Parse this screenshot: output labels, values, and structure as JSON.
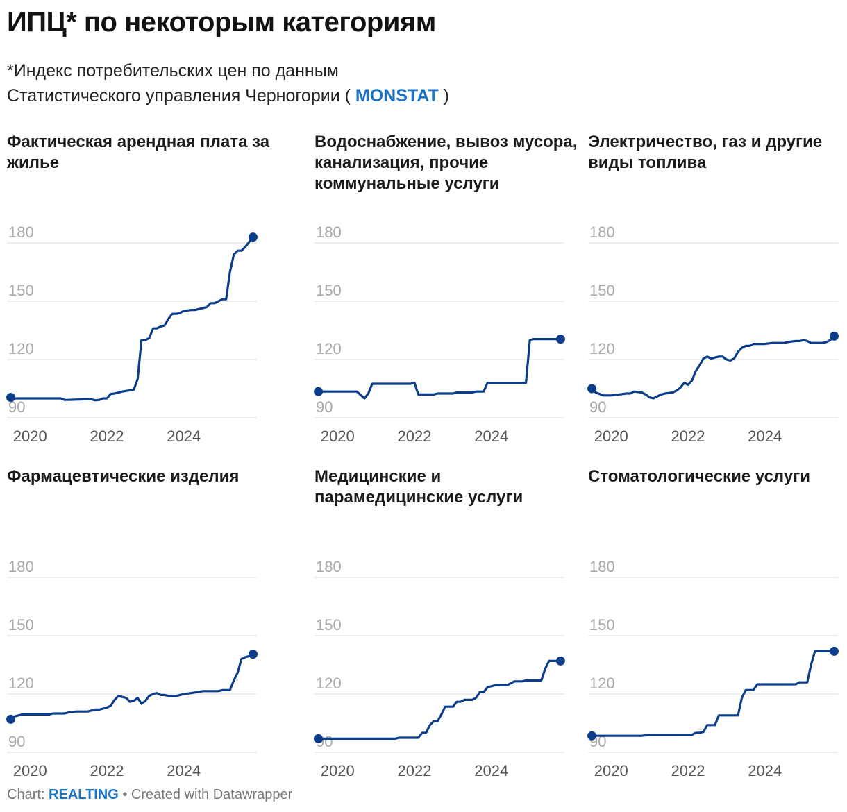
{
  "title": "ИПЦ* по некоторым категориям",
  "subtitle": {
    "line1": "*Индекс потребительских цен по данным",
    "line2_prefix": "Статистического управления Черногории (",
    "source_name": "MONSTAT",
    "line2_suffix": ")"
  },
  "footer": {
    "prefix": "Chart:",
    "source": "REALTING",
    "suffix": "• Created with Datawrapper"
  },
  "colors": {
    "line": "#0c3d8a",
    "grid": "#dddddd",
    "tick": "#a8a8a8",
    "year": "#555555",
    "accent": "#1a73c4"
  },
  "chart_data": [
    {
      "type": "line",
      "title": "Фактическая арендная плата за жилье",
      "xlim": [
        2019.4,
        2025.9
      ],
      "ylim": [
        90,
        190
      ],
      "xticks": [
        2020,
        2022,
        2024
      ],
      "yticks": [
        90,
        120,
        150,
        180
      ],
      "x": [
        2019.5,
        2019.6,
        2020.0,
        2020.5,
        2020.8,
        2020.9,
        2021.0,
        2021.4,
        2021.6,
        2021.7,
        2021.8,
        2021.9,
        2022.0,
        2022.1,
        2022.2,
        2022.3,
        2022.4,
        2022.55,
        2022.7,
        2022.8,
        2022.9,
        2023.0,
        2023.1,
        2023.2,
        2023.3,
        2023.4,
        2023.5,
        2023.6,
        2023.7,
        2023.8,
        2023.9,
        2024.0,
        2024.2,
        2024.3,
        2024.4,
        2024.6,
        2024.7,
        2024.8,
        2024.9,
        2025.0,
        2025.1,
        2025.2,
        2025.3,
        2025.4,
        2025.5,
        2025.6,
        2025.7,
        2025.8
      ],
      "values": [
        100.5,
        100,
        100,
        100,
        100,
        99.2,
        99.2,
        99.5,
        99.5,
        99,
        99.2,
        100,
        100,
        102.3,
        102.5,
        103,
        103.5,
        104,
        104.5,
        110,
        130,
        130,
        131,
        136,
        136,
        137,
        137.5,
        141,
        143.5,
        143.5,
        144,
        145,
        145.5,
        145.5,
        146,
        147,
        149,
        149,
        150,
        151,
        151,
        165,
        174,
        176,
        176,
        178,
        180.5,
        183
      ]
    },
    {
      "type": "line",
      "title": "Водоснабжение, вывоз мусора, канализация, прочие коммунальные услуги",
      "xlim": [
        2019.4,
        2025.9
      ],
      "ylim": [
        90,
        190
      ],
      "xticks": [
        2020,
        2022,
        2024
      ],
      "yticks": [
        90,
        120,
        150,
        180
      ],
      "x": [
        2019.5,
        2019.7,
        2020.5,
        2020.7,
        2020.8,
        2020.9,
        2021.0,
        2021.4,
        2021.9,
        2022.0,
        2022.1,
        2022.5,
        2022.6,
        2023.0,
        2023.1,
        2023.5,
        2023.6,
        2023.8,
        2023.9,
        2024.0,
        2024.9,
        2025.0,
        2025.1,
        2025.2,
        2025.4,
        2025.8
      ],
      "values": [
        103.5,
        103.5,
        103.5,
        100,
        102.5,
        107.5,
        107.5,
        107.5,
        107.5,
        108,
        102,
        102,
        102.5,
        102.5,
        103,
        103,
        103.5,
        103.5,
        108,
        108,
        108,
        130,
        130.5,
        130.5,
        130.5,
        130.5
      ]
    },
    {
      "type": "line",
      "title": "Электричество, газ и другие виды топлива",
      "xlim": [
        2019.4,
        2025.9
      ],
      "ylim": [
        90,
        190
      ],
      "xticks": [
        2020,
        2022,
        2024
      ],
      "yticks": [
        90,
        120,
        150,
        180
      ],
      "x": [
        2019.5,
        2019.6,
        2019.8,
        2020.0,
        2020.2,
        2020.4,
        2020.5,
        2020.6,
        2020.8,
        2020.9,
        2021.0,
        2021.1,
        2021.2,
        2021.3,
        2021.4,
        2021.6,
        2021.7,
        2021.8,
        2021.9,
        2022.0,
        2022.1,
        2022.2,
        2022.3,
        2022.4,
        2022.5,
        2022.6,
        2022.7,
        2022.8,
        2022.9,
        2023.0,
        2023.1,
        2023.2,
        2023.3,
        2023.4,
        2023.5,
        2023.6,
        2023.7,
        2023.8,
        2023.9,
        2024.0,
        2024.2,
        2024.5,
        2024.6,
        2024.8,
        2024.9,
        2025.0,
        2025.1,
        2025.2,
        2025.3,
        2025.5,
        2025.6,
        2025.7,
        2025.8
      ],
      "values": [
        105,
        103,
        101.5,
        101.5,
        102,
        102.5,
        102.5,
        103.5,
        103,
        102,
        100.5,
        100,
        101,
        102,
        102.5,
        103,
        104,
        105.5,
        108,
        107,
        109,
        114,
        117,
        120.5,
        121.5,
        120.5,
        121,
        121.5,
        121.5,
        120,
        119.5,
        120.5,
        124,
        126,
        127,
        127,
        128,
        128,
        128,
        128,
        128.5,
        128.5,
        129,
        129.5,
        129.5,
        130,
        129.5,
        128.5,
        128.5,
        128.5,
        129,
        130,
        132
      ]
    },
    {
      "type": "line",
      "title": "Фармацевтические изделия",
      "xlim": [
        2019.4,
        2025.9
      ],
      "ylim": [
        90,
        190
      ],
      "xticks": [
        2020,
        2022,
        2024
      ],
      "yticks": [
        90,
        120,
        150,
        180
      ],
      "x": [
        2019.5,
        2019.6,
        2019.8,
        2020.0,
        2020.5,
        2020.6,
        2020.8,
        2020.9,
        2021.0,
        2021.2,
        2021.3,
        2021.5,
        2021.6,
        2021.7,
        2021.8,
        2021.9,
        2022.0,
        2022.1,
        2022.2,
        2022.3,
        2022.4,
        2022.5,
        2022.6,
        2022.7,
        2022.8,
        2022.9,
        2023.0,
        2023.1,
        2023.2,
        2023.3,
        2023.4,
        2023.5,
        2023.6,
        2023.7,
        2023.8,
        2023.9,
        2024.0,
        2024.2,
        2024.5,
        2024.7,
        2024.8,
        2024.9,
        2025.0,
        2025.1,
        2025.2,
        2025.3,
        2025.4,
        2025.5,
        2025.6,
        2025.7,
        2025.8
      ],
      "values": [
        107,
        108.5,
        109.5,
        109.5,
        109.5,
        110,
        110,
        110,
        110.5,
        111,
        111,
        111,
        111.5,
        112,
        112,
        112.5,
        113,
        114,
        117,
        119,
        118.5,
        118,
        116,
        116.5,
        118,
        115,
        116.5,
        119,
        120,
        120.5,
        119.5,
        119.5,
        119,
        119,
        119,
        119.5,
        120,
        120.5,
        121.5,
        121.5,
        121.5,
        121.5,
        122,
        122,
        122,
        127,
        131,
        138,
        139,
        139.5,
        140.5
      ]
    },
    {
      "type": "line",
      "title": "Медицинские и парамедицинские услуги",
      "xlim": [
        2019.4,
        2025.9
      ],
      "ylim": [
        90,
        190
      ],
      "xticks": [
        2020,
        2022,
        2024
      ],
      "yticks": [
        90,
        120,
        150,
        180
      ],
      "x": [
        2019.5,
        2019.6,
        2020.8,
        2021.0,
        2021.5,
        2021.6,
        2021.7,
        2021.8,
        2021.9,
        2022.0,
        2022.1,
        2022.2,
        2022.3,
        2022.4,
        2022.5,
        2022.6,
        2022.7,
        2022.8,
        2022.9,
        2023.0,
        2023.1,
        2023.2,
        2023.3,
        2023.4,
        2023.5,
        2023.6,
        2023.7,
        2023.8,
        2023.9,
        2024.0,
        2024.1,
        2024.3,
        2024.4,
        2024.6,
        2024.7,
        2024.8,
        2024.9,
        2025.0,
        2025.1,
        2025.2,
        2025.3,
        2025.4,
        2025.5,
        2025.6,
        2025.8
      ],
      "values": [
        97,
        97,
        97,
        97,
        97,
        97.5,
        97.5,
        97.5,
        97.5,
        97.5,
        97.5,
        100,
        100,
        104,
        106,
        106,
        109.5,
        113.5,
        113.5,
        113.5,
        116,
        116,
        117,
        117,
        117,
        118,
        121,
        121,
        123.5,
        124,
        124.5,
        124.5,
        124.5,
        126.5,
        126.5,
        126.5,
        127,
        127,
        127,
        127,
        127,
        133,
        137,
        137,
        137
      ]
    },
    {
      "type": "line",
      "title": "Стоматологические услуги",
      "xlim": [
        2019.4,
        2025.9
      ],
      "ylim": [
        90,
        190
      ],
      "xticks": [
        2020,
        2022,
        2024
      ],
      "yticks": [
        90,
        120,
        150,
        180
      ],
      "x": [
        2019.5,
        2019.6,
        2020.8,
        2021.0,
        2021.5,
        2021.6,
        2021.7,
        2021.8,
        2021.9,
        2022.0,
        2022.1,
        2022.2,
        2022.3,
        2022.4,
        2022.5,
        2022.6,
        2022.7,
        2022.8,
        2022.9,
        2023.0,
        2023.1,
        2023.2,
        2023.3,
        2023.4,
        2023.5,
        2023.6,
        2023.7,
        2023.8,
        2023.9,
        2024.0,
        2024.3,
        2024.6,
        2024.7,
        2024.8,
        2024.9,
        2025.0,
        2025.1,
        2025.2,
        2025.3,
        2025.4,
        2025.6,
        2025.8
      ],
      "values": [
        98.5,
        98.5,
        98.5,
        99,
        99,
        99,
        99,
        99,
        99,
        99,
        99,
        100,
        100,
        100.5,
        104,
        104,
        104,
        109,
        109,
        109,
        109,
        109,
        109,
        118,
        122,
        122,
        122,
        125,
        125,
        125,
        125,
        125,
        125,
        125,
        126,
        126,
        126,
        135,
        142,
        142,
        142,
        142
      ]
    }
  ]
}
